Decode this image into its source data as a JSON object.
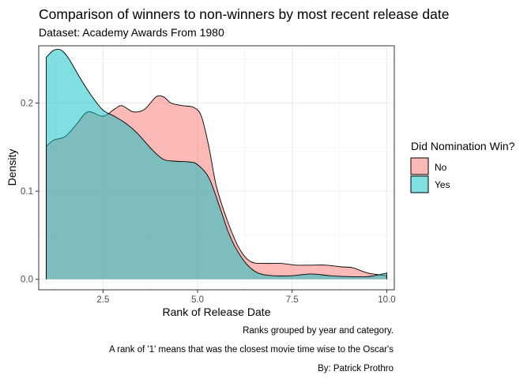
{
  "chart_data": {
    "type": "area",
    "title": "Comparison of winners to non-winners by most recent release date",
    "subtitle": "Dataset: Academy Awards From 1980",
    "xlabel": "Rank of Release Date",
    "ylabel": "Density",
    "xlim": [
      0.8,
      10.2
    ],
    "ylim": [
      -0.012,
      0.265
    ],
    "x_ticks": [
      2.5,
      5.0,
      7.5,
      10.0
    ],
    "x_tick_labels": [
      "2.5",
      "5.0",
      "7.5",
      "10.0"
    ],
    "y_ticks": [
      0.0,
      0.1,
      0.2
    ],
    "y_tick_labels": [
      "0.0",
      "0.1",
      "0.2"
    ],
    "grid": true,
    "legend": {
      "title": "Did Nomination Win?",
      "placement": "right",
      "entries": [
        {
          "label": "No",
          "color": "#F8766D"
        },
        {
          "label": "Yes",
          "color": "#00BFC4"
        }
      ]
    },
    "series": [
      {
        "name": "No",
        "color": "#F8766D",
        "points": [
          [
            1.0,
            0.151
          ],
          [
            1.2,
            0.158
          ],
          [
            1.5,
            0.162
          ],
          [
            1.8,
            0.176
          ],
          [
            2.1,
            0.19
          ],
          [
            2.5,
            0.185
          ],
          [
            2.8,
            0.193
          ],
          [
            3.0,
            0.197
          ],
          [
            3.3,
            0.19
          ],
          [
            3.6,
            0.193
          ],
          [
            3.9,
            0.207
          ],
          [
            4.1,
            0.207
          ],
          [
            4.3,
            0.2
          ],
          [
            4.6,
            0.197
          ],
          [
            4.9,
            0.195
          ],
          [
            5.1,
            0.185
          ],
          [
            5.3,
            0.15
          ],
          [
            5.5,
            0.105
          ],
          [
            5.8,
            0.065
          ],
          [
            6.1,
            0.035
          ],
          [
            6.4,
            0.02
          ],
          [
            6.8,
            0.018
          ],
          [
            7.2,
            0.018
          ],
          [
            7.6,
            0.016
          ],
          [
            8.0,
            0.016
          ],
          [
            8.4,
            0.016
          ],
          [
            8.8,
            0.014
          ],
          [
            9.1,
            0.013
          ],
          [
            9.5,
            0.007
          ],
          [
            10.0,
            0.004
          ]
        ]
      },
      {
        "name": "Yes",
        "color": "#00BFC4",
        "points": [
          [
            1.0,
            0.252
          ],
          [
            1.2,
            0.26
          ],
          [
            1.4,
            0.26
          ],
          [
            1.6,
            0.25
          ],
          [
            1.9,
            0.228
          ],
          [
            2.2,
            0.208
          ],
          [
            2.5,
            0.192
          ],
          [
            2.8,
            0.185
          ],
          [
            3.1,
            0.177
          ],
          [
            3.4,
            0.166
          ],
          [
            3.8,
            0.147
          ],
          [
            4.1,
            0.136
          ],
          [
            4.4,
            0.134
          ],
          [
            4.8,
            0.133
          ],
          [
            5.0,
            0.13
          ],
          [
            5.3,
            0.115
          ],
          [
            5.6,
            0.08
          ],
          [
            5.8,
            0.055
          ],
          [
            6.0,
            0.036
          ],
          [
            6.3,
            0.017
          ],
          [
            6.6,
            0.007
          ],
          [
            7.0,
            0.004
          ],
          [
            7.5,
            0.004
          ],
          [
            8.0,
            0.006
          ],
          [
            8.5,
            0.004
          ],
          [
            9.0,
            0.003
          ],
          [
            9.5,
            0.003
          ],
          [
            10.0,
            0.007
          ]
        ]
      }
    ]
  },
  "captions": {
    "line1": "Ranks grouped by year and category.",
    "line2": "A rank of '1' means that was the closest movie time wise to the Oscar's",
    "line3": "By: Patrick Prothro"
  }
}
